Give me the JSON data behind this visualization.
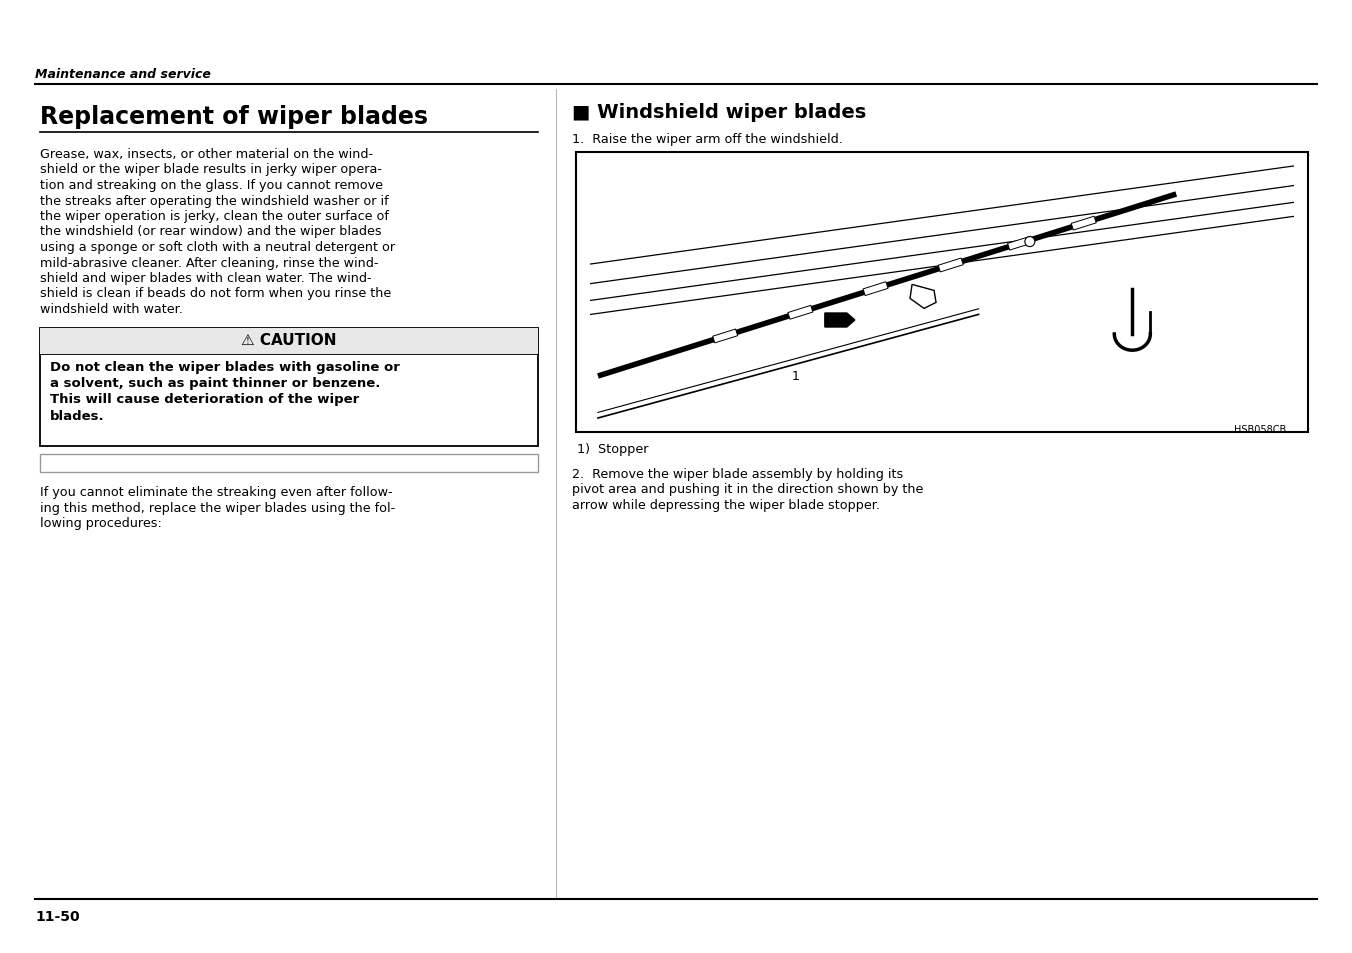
{
  "page_bg": "#ffffff",
  "header_italic": "Maintenance and service",
  "page_number": "11-50",
  "main_title": "Replacement of wiper blades",
  "left_body_text": [
    "Grease, wax, insects, or other material on the wind-",
    "shield or the wiper blade results in jerky wiper opera-",
    "tion and streaking on the glass. If you cannot remove",
    "the streaks after operating the windshield washer or if",
    "the wiper operation is jerky, clean the outer surface of",
    "the windshield (or rear window) and the wiper blades",
    "using a sponge or soft cloth with a neutral detergent or",
    "mild-abrasive cleaner. After cleaning, rinse the wind-",
    "shield and wiper blades with clean water. The wind-",
    "shield is clean if beads do not form when you rinse the",
    "windshield with water."
  ],
  "caution_title": "⚠ CAUTION",
  "caution_body_lines": [
    "Do not clean the wiper blades with gasoline or",
    "a solvent, such as paint thinner or benzene.",
    "This will cause deterioration of the wiper",
    "blades."
  ],
  "left_footer_text": [
    "If you cannot eliminate the streaking even after follow-",
    "ing this method, replace the wiper blades using the fol-",
    "lowing procedures:"
  ],
  "right_section_title": "■ Windshield wiper blades",
  "step1_text": "1.  Raise the wiper arm off the windshield.",
  "image_code": "HSB058CB",
  "caption": "1)  Stopper",
  "step2_lines": [
    "2.  Remove the wiper blade assembly by holding its",
    "pivot area and pushing it in the direction shown by the",
    "arrow while depressing the wiper blade stopper."
  ],
  "divider_color": "#000000",
  "text_color": "#000000",
  "box_bg": "#ffffff",
  "box_border": "#000000"
}
